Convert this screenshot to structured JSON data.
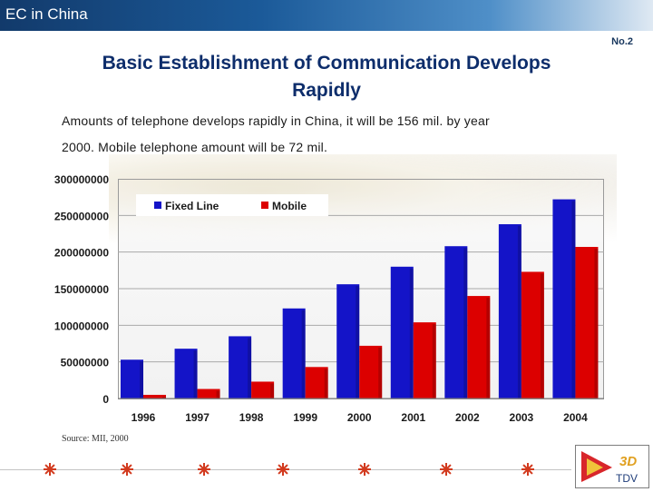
{
  "header": {
    "title": "EC in China",
    "slide_number": "No.2"
  },
  "slide": {
    "heading_line1": "Basic Establishment of Communication Develops",
    "heading_line2": "Rapidly",
    "subtitle_line1": "Amounts of telephone develops rapidly in China, it will be 156 mil. by year",
    "subtitle_line2": "2000. Mobile telephone amount will be 72  mil.",
    "source": "Source: MII, 2000"
  },
  "logo": {
    "text": "TDV",
    "badge": "3D"
  },
  "colors": {
    "fixed_line": "#1414c8",
    "mobile": "#dc0000",
    "header_band": "#1b5a99"
  },
  "chart_data": {
    "type": "bar",
    "categories": [
      "1996",
      "1997",
      "1998",
      "1999",
      "2000",
      "2001",
      "2002",
      "2003",
      "2004"
    ],
    "series": [
      {
        "name": "Fixed Line",
        "values": [
          53000000,
          68000000,
          85000000,
          123000000,
          156000000,
          180000000,
          208000000,
          238000000,
          272000000
        ]
      },
      {
        "name": "Mobile",
        "values": [
          5000000,
          13000000,
          23000000,
          43000000,
          72000000,
          104000000,
          140000000,
          173000000,
          207000000
        ]
      }
    ],
    "y_ticks": [
      "300000000",
      "250000000",
      "200000000",
      "150000000",
      "100000000",
      "50000000",
      "0"
    ],
    "ylim": [
      0,
      300000000
    ],
    "legend": "top-left",
    "grid": true,
    "title": "",
    "xlabel": "",
    "ylabel": ""
  }
}
